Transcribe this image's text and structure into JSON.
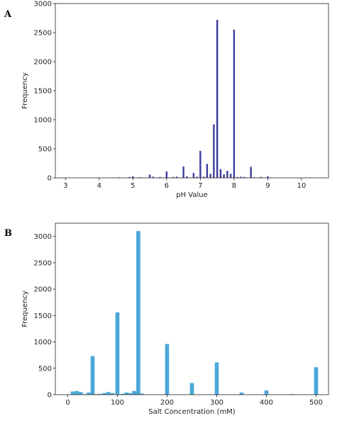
{
  "panels": [
    {
      "letter": "A"
    },
    {
      "letter": "B"
    }
  ],
  "chart_data": [
    {
      "type": "bar",
      "xlabel": "pH Value",
      "ylabel": "Frequency",
      "xlim": [
        2.7,
        10.8
      ],
      "ylim": [
        0,
        3000
      ],
      "xticks": [
        3,
        4,
        5,
        6,
        7,
        8,
        9,
        10
      ],
      "yticks": [
        0,
        500,
        1000,
        1500,
        2000,
        2500,
        3000
      ],
      "bar_width": 0.05,
      "color": "#3a3a9a",
      "x": [
        4.0,
        4.6,
        4.9,
        5.0,
        5.2,
        5.5,
        5.6,
        5.8,
        6.0,
        6.2,
        6.3,
        6.5,
        6.6,
        6.8,
        6.9,
        7.0,
        7.1,
        7.2,
        7.3,
        7.4,
        7.5,
        7.6,
        7.7,
        7.8,
        7.9,
        8.0,
        8.1,
        8.2,
        8.3,
        8.5,
        8.6,
        8.8,
        9.0,
        9.1
      ],
      "values": [
        5,
        10,
        15,
        25,
        12,
        55,
        20,
        15,
        110,
        15,
        20,
        195,
        25,
        85,
        20,
        465,
        20,
        240,
        70,
        920,
        2720,
        150,
        60,
        120,
        70,
        2550,
        15,
        20,
        15,
        190,
        10,
        15,
        25,
        5
      ]
    },
    {
      "type": "bar",
      "xlabel": "Salt Concentration (mM)",
      "ylabel": "Frequency",
      "xlim": [
        -25,
        525
      ],
      "ylim": [
        0,
        3250
      ],
      "xticks": [
        0,
        100,
        200,
        300,
        400,
        500
      ],
      "yticks": [
        0,
        500,
        1000,
        1500,
        2000,
        2500,
        3000
      ],
      "bar_width": 8,
      "color": "#4aa8d8",
      "x": [
        10,
        18,
        26,
        34,
        42,
        50,
        58,
        66,
        74,
        82,
        90,
        100,
        110,
        118,
        126,
        134,
        142,
        150,
        200,
        250,
        300,
        350,
        400,
        450,
        500
      ],
      "values": [
        60,
        70,
        50,
        10,
        40,
        730,
        10,
        15,
        30,
        50,
        30,
        1560,
        15,
        40,
        30,
        70,
        3100,
        20,
        960,
        220,
        610,
        40,
        80,
        10,
        520
      ]
    }
  ]
}
